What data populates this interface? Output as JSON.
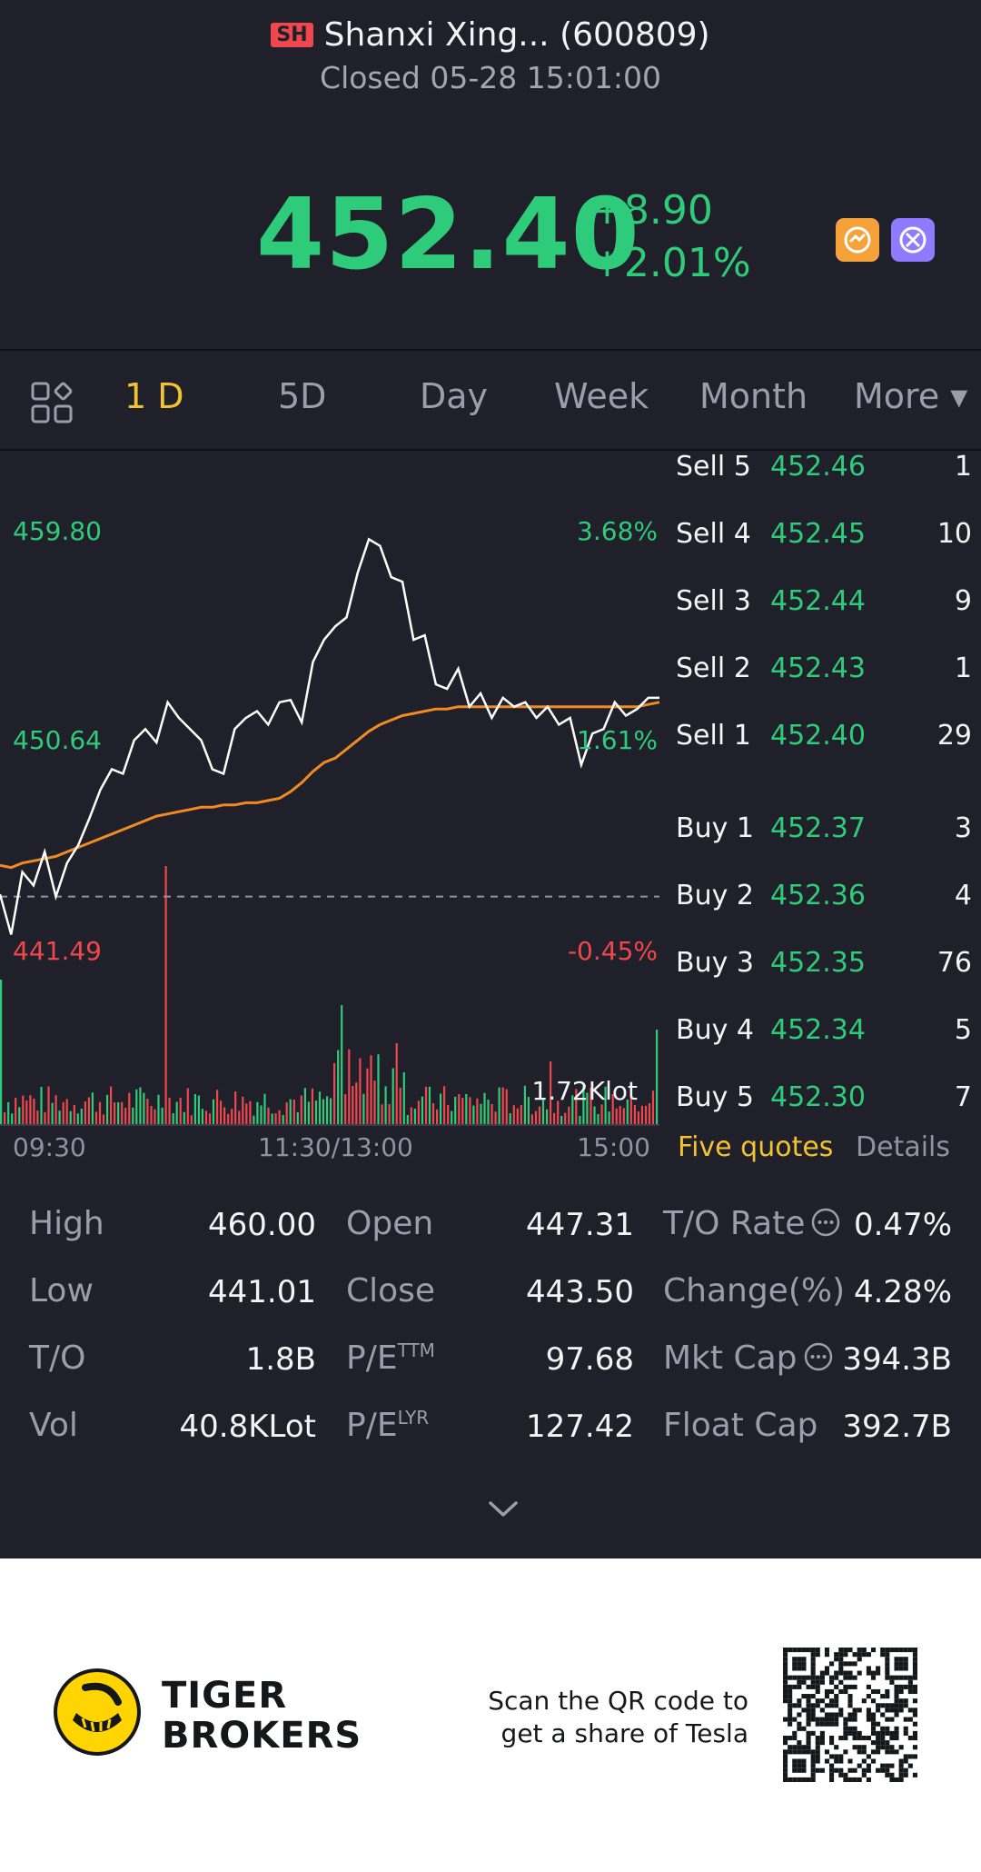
{
  "header": {
    "market": "SH",
    "title": "Shanxi Xing... (600809)",
    "status": "Closed 05-28 15:01:00",
    "price": "452.40",
    "change": "+8.90",
    "change_pct": "+2.01%",
    "icons": [
      "orange-badge-icon",
      "purple-badge-icon"
    ]
  },
  "tabs": {
    "items": [
      {
        "label": "1 D",
        "active": true
      },
      {
        "label": "5D"
      },
      {
        "label": "Day"
      },
      {
        "label": "Week"
      },
      {
        "label": "Month"
      },
      {
        "label": "More ▾"
      }
    ]
  },
  "chart": {
    "upper_price": "459.80",
    "upper_pct": "3.68%",
    "mid_price": "450.64",
    "mid_pct": "1.61%",
    "lower_price": "441.49",
    "lower_pct": "-0.45%",
    "volume_label": "1.72Klot",
    "time_start": "09:30",
    "time_mid": "11:30/13:00",
    "time_end": "15:00",
    "colors": {
      "price": "#ffffff",
      "avg": "#f08a24",
      "up": "#2ecc7a",
      "down": "#f0474f"
    }
  },
  "chart_data": {
    "type": "line",
    "ylim": [
      441.49,
      459.8
    ],
    "prev_close": 443.5,
    "series": [
      {
        "name": "",
        "values": [
          443.6,
          441.8,
          444.6,
          444.0,
          445.5,
          443.5,
          445.0,
          445.8,
          447.0,
          448.3,
          449.2,
          449.0,
          450.5,
          451.0,
          450.4,
          452.2,
          451.5,
          451.0,
          450.5,
          449.2,
          449.0,
          451.0,
          451.5,
          451.8,
          451.2,
          452.2,
          452.3,
          451.3,
          454.0,
          455.0,
          455.6,
          456.0,
          458.0,
          459.5,
          459.2,
          457.8,
          457.6,
          455.0,
          455.2,
          453.0,
          452.8,
          453.7,
          452.0,
          452.6,
          451.5,
          452.4,
          452.0,
          452.2,
          451.5,
          452.0,
          451.2,
          451.5,
          449.4,
          450.8,
          451.0,
          452.2,
          451.6,
          451.9,
          452.4,
          452.4
        ]
      },
      {
        "name": "",
        "values": [
          444.9,
          444.8,
          445.0,
          445.1,
          445.2,
          445.3,
          445.5,
          445.7,
          445.9,
          446.1,
          446.3,
          446.5,
          446.7,
          446.9,
          447.1,
          447.2,
          447.3,
          447.4,
          447.5,
          447.5,
          447.6,
          447.6,
          447.7,
          447.7,
          447.8,
          447.9,
          448.2,
          448.6,
          449.1,
          449.5,
          449.7,
          450.1,
          450.5,
          450.9,
          451.2,
          451.4,
          451.6,
          451.7,
          451.8,
          451.9,
          451.9,
          452.0,
          452.0,
          452.0,
          452.0,
          452.0,
          452.0,
          452.0,
          452.0,
          452.0,
          452.0,
          452.0,
          452.0,
          452.0,
          452.0,
          452.0,
          452.0,
          452.0,
          452.1,
          452.2
        ]
      }
    ],
    "volume_max": "1.72Klot"
  },
  "orderbook": {
    "sells": [
      {
        "label": "Sell 5",
        "price": "452.46",
        "vol": "1"
      },
      {
        "label": "Sell 4",
        "price": "452.45",
        "vol": "10"
      },
      {
        "label": "Sell 3",
        "price": "452.44",
        "vol": "9"
      },
      {
        "label": "Sell 2",
        "price": "452.43",
        "vol": "1"
      },
      {
        "label": "Sell 1",
        "price": "452.40",
        "vol": "29"
      }
    ],
    "buys": [
      {
        "label": "Buy 1",
        "price": "452.37",
        "vol": "3"
      },
      {
        "label": "Buy 2",
        "price": "452.36",
        "vol": "4"
      },
      {
        "label": "Buy 3",
        "price": "452.35",
        "vol": "76"
      },
      {
        "label": "Buy 4",
        "price": "452.34",
        "vol": "5"
      },
      {
        "label": "Buy 5",
        "price": "452.30",
        "vol": "7"
      }
    ],
    "tab_five": "Five quotes",
    "tab_details": "Details"
  },
  "stats": {
    "high_label": "High",
    "high": "460.00",
    "low_label": "Low",
    "low": "441.01",
    "to_label": "T/O",
    "to": "1.8B",
    "vol_label": "Vol",
    "vol": "40.8KLot",
    "open_label": "Open",
    "open": "447.31",
    "close_label": "Close",
    "close": "443.50",
    "pe_label": "P/E",
    "pe_sup": "TTM",
    "pe": "97.68",
    "pel_label": "P/E",
    "pel_sup": "LYR",
    "pel": "127.42",
    "tor_label": "T/O Rate",
    "tor": "0.47%",
    "chg_label": "Change(%)",
    "chg": "4.28%",
    "mcap_label": "Mkt Cap",
    "mcap": "394.3B",
    "fcap_label": "Float Cap",
    "fcap": "392.7B"
  },
  "footer": {
    "brand_line1": "TIGER",
    "brand_line2": "BROKERS",
    "scan_line1": "Scan the QR code to",
    "scan_line2": "get a share of Tesla"
  }
}
